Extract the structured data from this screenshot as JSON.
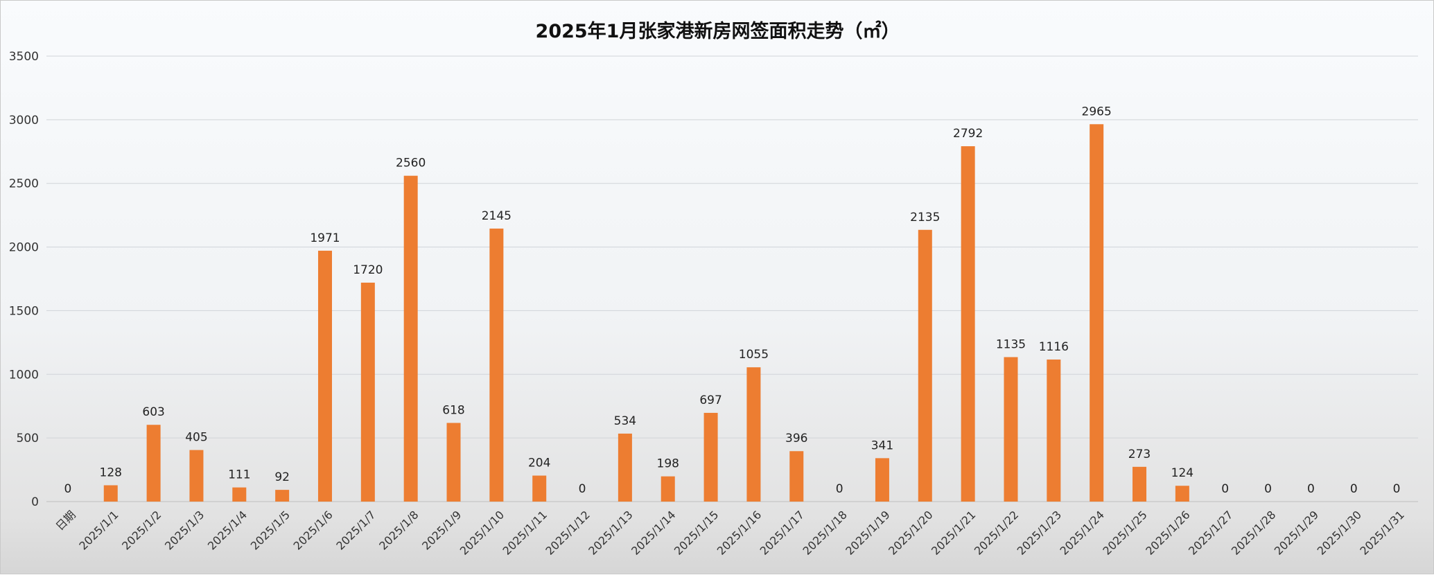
{
  "chart_data": {
    "type": "bar",
    "title": "2025年1月张家港新房网签面积走势（㎡）",
    "xlabel": "",
    "ylabel": "",
    "ylim": [
      0,
      3500
    ],
    "yticks": [
      "0",
      "500",
      "1000",
      "1500",
      "2000",
      "2500",
      "3000",
      "3500"
    ],
    "grid": true,
    "legend": "none",
    "categories": [
      "日期",
      "2025/1/1",
      "2025/1/2",
      "2025/1/3",
      "2025/1/4",
      "2025/1/5",
      "2025/1/6",
      "2025/1/7",
      "2025/1/8",
      "2025/1/9",
      "2025/1/10",
      "2025/1/11",
      "2025/1/12",
      "2025/1/13",
      "2025/1/14",
      "2025/1/15",
      "2025/1/16",
      "2025/1/17",
      "2025/1/18",
      "2025/1/19",
      "2025/1/20",
      "2025/1/21",
      "2025/1/22",
      "2025/1/23",
      "2025/1/24",
      "2025/1/25",
      "2025/1/26",
      "2025/1/27",
      "2025/1/28",
      "2025/1/29",
      "2025/1/30",
      "2025/1/31"
    ],
    "values": [
      0,
      128,
      603,
      405,
      111,
      92,
      1971,
      1720,
      2560,
      618,
      2145,
      204,
      0,
      534,
      198,
      697,
      1055,
      396,
      0,
      341,
      2135,
      2792,
      1135,
      1116,
      2965,
      273,
      124,
      0,
      0,
      0,
      0,
      0
    ],
    "colors": {
      "bar": "#ED7D31",
      "grid": "#d0d4d8"
    }
  }
}
